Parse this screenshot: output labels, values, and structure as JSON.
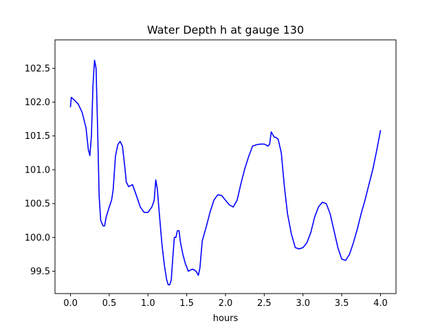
{
  "chart_data": {
    "type": "line",
    "title": "Water Depth h at gauge 130",
    "xlabel": "hours",
    "ylabel": "",
    "xlim": [
      -0.2,
      4.2
    ],
    "ylim": [
      99.17,
      102.92
    ],
    "xticks": [
      0.0,
      0.5,
      1.0,
      1.5,
      2.0,
      2.5,
      3.0,
      3.5,
      4.0
    ],
    "xtick_labels": [
      "0.0",
      "0.5",
      "1.0",
      "1.5",
      "2.0",
      "2.5",
      "3.0",
      "3.5",
      "4.0"
    ],
    "yticks": [
      99.5,
      100.0,
      100.5,
      101.0,
      101.5,
      102.0,
      102.5
    ],
    "ytick_labels": [
      "99.5",
      "100.0",
      "100.5",
      "101.0",
      "101.5",
      "102.0",
      "102.5"
    ],
    "grid": false,
    "series": [
      {
        "color": "#0000ff",
        "x": [
          0.0,
          0.01,
          0.05,
          0.1,
          0.15,
          0.2,
          0.23,
          0.25,
          0.27,
          0.29,
          0.31,
          0.33,
          0.35,
          0.37,
          0.39,
          0.42,
          0.44,
          0.46,
          0.5,
          0.53,
          0.55,
          0.58,
          0.61,
          0.64,
          0.67,
          0.7,
          0.72,
          0.75,
          0.8,
          0.85,
          0.9,
          0.95,
          1.0,
          1.05,
          1.08,
          1.1,
          1.12,
          1.15,
          1.18,
          1.21,
          1.24,
          1.26,
          1.28,
          1.3,
          1.32,
          1.34,
          1.36,
          1.38,
          1.4,
          1.42,
          1.45,
          1.48,
          1.52,
          1.55,
          1.58,
          1.62,
          1.65,
          1.67,
          1.7,
          1.75,
          1.8,
          1.85,
          1.9,
          1.95,
          2.0,
          2.05,
          2.1,
          2.15,
          2.2,
          2.25,
          2.3,
          2.35,
          2.4,
          2.45,
          2.5,
          2.55,
          2.57,
          2.59,
          2.61,
          2.63,
          2.65,
          2.68,
          2.72,
          2.76,
          2.8,
          2.85,
          2.9,
          2.95,
          3.0,
          3.05,
          3.1,
          3.15,
          3.2,
          3.25,
          3.3,
          3.35,
          3.4,
          3.45,
          3.5,
          3.55,
          3.6,
          3.65,
          3.7,
          3.75,
          3.8,
          3.85,
          3.9,
          3.95,
          4.0
        ],
        "y": [
          101.93,
          102.07,
          102.03,
          101.97,
          101.85,
          101.62,
          101.3,
          101.21,
          101.5,
          102.25,
          102.62,
          102.5,
          101.6,
          100.6,
          100.25,
          100.17,
          100.17,
          100.3,
          100.45,
          100.55,
          100.7,
          101.2,
          101.37,
          101.42,
          101.35,
          101.05,
          100.82,
          100.75,
          100.78,
          100.62,
          100.45,
          100.37,
          100.37,
          100.45,
          100.55,
          100.85,
          100.72,
          100.3,
          99.9,
          99.6,
          99.38,
          99.3,
          99.3,
          99.37,
          99.7,
          100.0,
          100.0,
          100.1,
          100.1,
          99.92,
          99.75,
          99.62,
          99.5,
          99.52,
          99.53,
          99.5,
          99.44,
          99.55,
          99.95,
          100.15,
          100.37,
          100.55,
          100.63,
          100.62,
          100.55,
          100.48,
          100.45,
          100.55,
          100.8,
          101.02,
          101.2,
          101.35,
          101.37,
          101.38,
          101.38,
          101.35,
          101.38,
          101.56,
          101.52,
          101.48,
          101.48,
          101.45,
          101.25,
          100.75,
          100.35,
          100.05,
          99.85,
          99.83,
          99.85,
          99.92,
          100.07,
          100.3,
          100.45,
          100.52,
          100.5,
          100.35,
          100.1,
          99.85,
          99.68,
          99.66,
          99.75,
          99.92,
          100.12,
          100.35,
          100.55,
          100.78,
          101.0,
          101.28,
          101.58
        ]
      }
    ]
  }
}
